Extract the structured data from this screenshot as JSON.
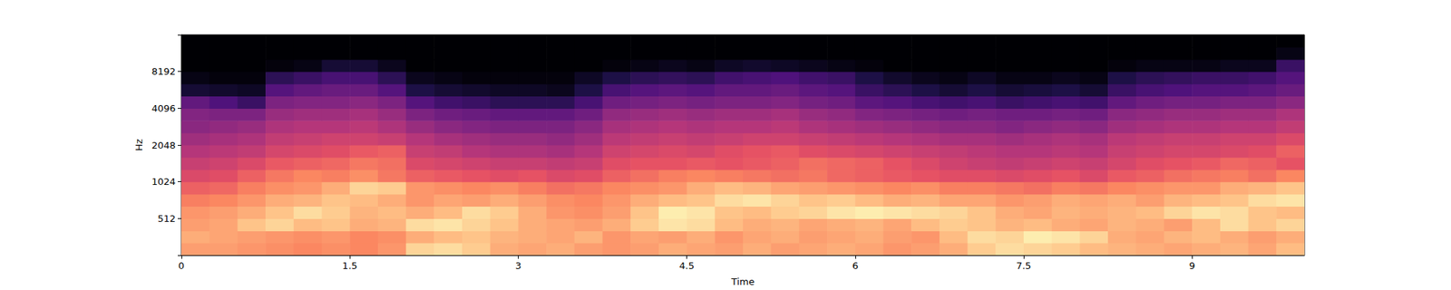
{
  "chart_data": {
    "type": "heatmap",
    "xlabel": "Time",
    "ylabel": "Hz",
    "xlim": [
      0,
      10
    ],
    "xticks": [
      0,
      1.5,
      3,
      4.5,
      6,
      7.5,
      9
    ],
    "ylim": [
      256,
      16384
    ],
    "yticks": [
      512,
      1024,
      2048,
      4096,
      8192
    ],
    "log": "y",
    "grid": false,
    "color_range": [
      -80,
      -20
    ],
    "x_bins": [
      0,
      0.25,
      0.5,
      0.75,
      1,
      1.25,
      1.5,
      1.75,
      2,
      2.25,
      2.5,
      2.75,
      3,
      3.25,
      3.5,
      3.75,
      4,
      4.25,
      4.5,
      4.75,
      5,
      5.25,
      5.5,
      5.75,
      6,
      6.25,
      6.5,
      6.75,
      7,
      7.25,
      7.5,
      7.75,
      8,
      8.25,
      8.5,
      8.75,
      9,
      9.25,
      9.5,
      9.75,
      10
    ],
    "y_bins": [
      256,
      323,
      406,
      512,
      645,
      813,
      1024,
      1290,
      1625,
      2048,
      2580,
      3251,
      4096,
      5161,
      6502,
      8192,
      10321,
      13004,
      16384
    ],
    "values": [
      [
        -32,
        -32,
        -33,
        -34,
        -35,
        -34,
        -35,
        -33,
        -25,
        -24,
        -26,
        -30,
        -31,
        -30,
        -32,
        -33,
        -32,
        -30,
        -31,
        -32,
        -30,
        -32,
        -31,
        -30,
        -31,
        -33,
        -32,
        -30,
        -26,
        -24,
        -25,
        -26,
        -28,
        -29,
        -30,
        -31,
        -30,
        -29,
        -31,
        -28
      ],
      [
        -30,
        -31,
        -32,
        -33,
        -34,
        -33,
        -35,
        -34,
        -30,
        -28,
        -27,
        -29,
        -30,
        -31,
        -29,
        -33,
        -31,
        -32,
        -30,
        -33,
        -31,
        -30,
        -32,
        -31,
        -30,
        -32,
        -33,
        -28,
        -24,
        -25,
        -22,
        -23,
        -25,
        -30,
        -31,
        -29,
        -28,
        -30,
        -32,
        -30
      ],
      [
        -32,
        -31,
        -27,
        -25,
        -28,
        -27,
        -30,
        -29,
        -24,
        -23,
        -25,
        -27,
        -30,
        -31,
        -32,
        -30,
        -26,
        -23,
        -24,
        -28,
        -30,
        -29,
        -31,
        -30,
        -29,
        -31,
        -28,
        -26,
        -27,
        -29,
        -28,
        -30,
        -31,
        -29,
        -30,
        -32,
        -28,
        -24,
        -27,
        -25
      ],
      [
        -33,
        -32,
        -30,
        -27,
        -24,
        -26,
        -29,
        -28,
        -30,
        -28,
        -24,
        -26,
        -30,
        -33,
        -34,
        -32,
        -27,
        -22,
        -23,
        -27,
        -28,
        -26,
        -25,
        -23,
        -22,
        -23,
        -24,
        -25,
        -27,
        -30,
        -31,
        -29,
        -30,
        -29,
        -28,
        -25,
        -23,
        -24,
        -27,
        -28
      ],
      [
        -36,
        -35,
        -33,
        -30,
        -29,
        -27,
        -28,
        -30,
        -33,
        -31,
        -32,
        -30,
        -32,
        -34,
        -35,
        -33,
        -30,
        -28,
        -27,
        -24,
        -23,
        -25,
        -27,
        -26,
        -28,
        -30,
        -29,
        -31,
        -31,
        -33,
        -32,
        -30,
        -31,
        -30,
        -32,
        -29,
        -28,
        -27,
        -24,
        -23
      ],
      [
        -40,
        -39,
        -36,
        -34,
        -33,
        -30,
        -25,
        -26,
        -33,
        -34,
        -35,
        -34,
        -36,
        -38,
        -37,
        -35,
        -34,
        -33,
        -30,
        -28,
        -29,
        -31,
        -32,
        -33,
        -34,
        -35,
        -34,
        -36,
        -36,
        -37,
        -38,
        -36,
        -37,
        -35,
        -34,
        -33,
        -33,
        -30,
        -29,
        -27
      ],
      [
        -44,
        -43,
        -40,
        -37,
        -35,
        -36,
        -34,
        -37,
        -40,
        -41,
        -42,
        -43,
        -42,
        -44,
        -43,
        -40,
        -38,
        -36,
        -35,
        -36,
        -37,
        -38,
        -37,
        -39,
        -40,
        -41,
        -42,
        -43,
        -43,
        -44,
        -43,
        -42,
        -44,
        -41,
        -40,
        -38,
        -37,
        -36,
        -38,
        -35
      ],
      [
        -47,
        -46,
        -44,
        -41,
        -40,
        -39,
        -37,
        -38,
        -44,
        -45,
        -46,
        -47,
        -47,
        -48,
        -47,
        -43,
        -42,
        -42,
        -41,
        -42,
        -41,
        -40,
        -38,
        -39,
        -40,
        -42,
        -44,
        -46,
        -47,
        -48,
        -47,
        -46,
        -47,
        -45,
        -43,
        -42,
        -41,
        -39,
        -40,
        -42
      ],
      [
        -50,
        -49,
        -48,
        -45,
        -44,
        -43,
        -41,
        -40,
        -47,
        -48,
        -50,
        -51,
        -51,
        -52,
        -50,
        -46,
        -45,
        -44,
        -45,
        -43,
        -42,
        -41,
        -43,
        -44,
        -45,
        -46,
        -47,
        -48,
        -49,
        -50,
        -50,
        -49,
        -50,
        -47,
        -46,
        -45,
        -45,
        -44,
        -43,
        -40
      ],
      [
        -53,
        -52,
        -51,
        -48,
        -47,
        -46,
        -46,
        -47,
        -50,
        -52,
        -53,
        -54,
        -54,
        -55,
        -53,
        -49,
        -48,
        -47,
        -48,
        -47,
        -46,
        -46,
        -47,
        -48,
        -49,
        -50,
        -51,
        -52,
        -52,
        -53,
        -52,
        -51,
        -52,
        -49,
        -48,
        -47,
        -47,
        -46,
        -46,
        -44
      ],
      [
        -56,
        -55,
        -54,
        -51,
        -50,
        -50,
        -49,
        -51,
        -54,
        -56,
        -57,
        -58,
        -58,
        -58,
        -56,
        -52,
        -51,
        -50,
        -51,
        -50,
        -50,
        -49,
        -51,
        -52,
        -53,
        -54,
        -55,
        -56,
        -56,
        -57,
        -56,
        -55,
        -56,
        -53,
        -52,
        -51,
        -51,
        -50,
        -50,
        -48
      ],
      [
        -57,
        -58,
        -58,
        -54,
        -53,
        -53,
        -52,
        -54,
        -58,
        -60,
        -61,
        -62,
        -62,
        -62,
        -60,
        -55,
        -54,
        -53,
        -54,
        -53,
        -53,
        -52,
        -54,
        -55,
        -57,
        -58,
        -59,
        -60,
        -59,
        -60,
        -60,
        -59,
        -60,
        -56,
        -55,
        -54,
        -54,
        -53,
        -53,
        -51
      ],
      [
        -62,
        -65,
        -68,
        -58,
        -57,
        -57,
        -56,
        -58,
        -64,
        -67,
        -68,
        -70,
        -70,
        -70,
        -66,
        -60,
        -59,
        -58,
        -59,
        -58,
        -58,
        -57,
        -59,
        -60,
        -63,
        -64,
        -66,
        -67,
        -66,
        -68,
        -67,
        -66,
        -67,
        -62,
        -60,
        -59,
        -59,
        -58,
        -58,
        -56
      ],
      [
        -74,
        -75,
        -76,
        -64,
        -62,
        -61,
        -61,
        -64,
        -72,
        -74,
        -75,
        -76,
        -76,
        -77,
        -72,
        -66,
        -64,
        -63,
        -64,
        -62,
        -62,
        -61,
        -63,
        -64,
        -68,
        -70,
        -72,
        -74,
        -72,
        -74,
        -73,
        -72,
        -74,
        -68,
        -66,
        -65,
        -64,
        -64,
        -63,
        -61
      ],
      [
        -78,
        -79,
        -79,
        -70,
        -68,
        -66,
        -66,
        -70,
        -77,
        -78,
        -79,
        -79,
        -79,
        -79,
        -76,
        -72,
        -70,
        -69,
        -70,
        -67,
        -66,
        -65,
        -67,
        -68,
        -72,
        -75,
        -77,
        -78,
        -76,
        -78,
        -78,
        -77,
        -78,
        -72,
        -70,
        -69,
        -68,
        -68,
        -67,
        -64
      ],
      [
        -80,
        -80,
        -80,
        -79,
        -78,
        -74,
        -74,
        -77,
        -80,
        -80,
        -80,
        -80,
        -80,
        -80,
        -80,
        -79,
        -78,
        -77,
        -78,
        -76,
        -75,
        -76,
        -77,
        -78,
        -79,
        -80,
        -80,
        -80,
        -80,
        -80,
        -80,
        -80,
        -80,
        -79,
        -78,
        -78,
        -78,
        -77,
        -77,
        -68
      ],
      [
        -80,
        -80,
        -80,
        -80,
        -80,
        -80,
        -80,
        -80,
        -80,
        -80,
        -80,
        -80,
        -80,
        -80,
        -80,
        -80,
        -80,
        -80,
        -80,
        -80,
        -80,
        -80,
        -80,
        -80,
        -80,
        -80,
        -80,
        -80,
        -80,
        -80,
        -80,
        -80,
        -80,
        -80,
        -80,
        -80,
        -80,
        -80,
        -80,
        -78
      ],
      [
        -80,
        -80,
        -80,
        -80,
        -80,
        -80,
        -80,
        -80,
        -80,
        -80,
        -80,
        -80,
        -80,
        -80,
        -80,
        -80,
        -80,
        -80,
        -80,
        -80,
        -80,
        -80,
        -80,
        -80,
        -80,
        -80,
        -80,
        -80,
        -80,
        -80,
        -80,
        -80,
        -80,
        -80,
        -80,
        -80,
        -80,
        -80,
        -80,
        -80
      ]
    ]
  }
}
